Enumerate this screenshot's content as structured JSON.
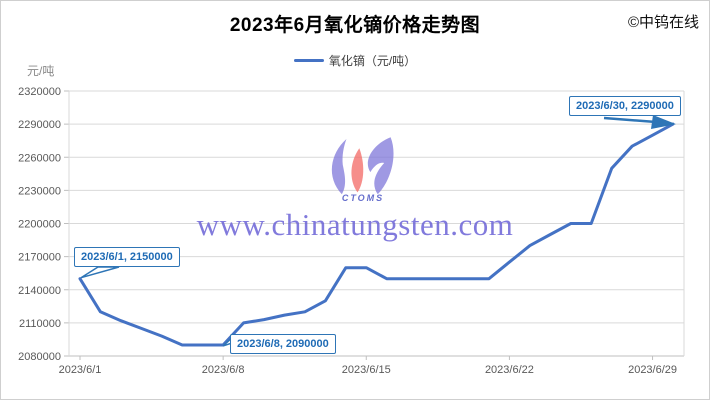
{
  "header": {
    "title": "2023年6月氧化镝价格走势图",
    "copyright": "©中钨在线"
  },
  "legend": {
    "series_label": "氧化镝（元/吨）",
    "line_color": "#4472c4"
  },
  "axes": {
    "y_unit": "元/吨",
    "y_ticks": [
      2320000,
      2290000,
      2260000,
      2230000,
      2200000,
      2170000,
      2140000,
      2110000,
      2080000
    ],
    "x_ticks": [
      "2023/6/1",
      "2023/6/8",
      "2023/6/15",
      "2023/6/22",
      "2023/6/29"
    ]
  },
  "annotations": [
    {
      "label": "2023/6/1, 2150000",
      "date": "2023/6/1",
      "value": 2150000
    },
    {
      "label": "2023/6/8, 2090000",
      "date": "2023/6/8",
      "value": 2090000
    },
    {
      "label": "2023/6/30, 2290000",
      "date": "2023/6/30",
      "value": 2290000
    }
  ],
  "watermark": {
    "url": "www.chinatungsten.com",
    "logo_text": "CTOMS"
  },
  "colors": {
    "line": "#4472c4",
    "grid": "#d9d9d9",
    "axis": "#bfbfbf",
    "tick_text": "#595959",
    "annotation": "#2e75b6"
  },
  "chart_data": {
    "type": "line",
    "title": "2023年6月氧化镝价格走势图",
    "xlabel": "",
    "ylabel": "元/吨",
    "ylim": [
      2080000,
      2320000
    ],
    "y_tick_interval": 30000,
    "grid": true,
    "legend_position": "top",
    "x": [
      "2023/6/1",
      "2023/6/2",
      "2023/6/3",
      "2023/6/4",
      "2023/6/5",
      "2023/6/6",
      "2023/6/7",
      "2023/6/8",
      "2023/6/9",
      "2023/6/10",
      "2023/6/11",
      "2023/6/12",
      "2023/6/13",
      "2023/6/14",
      "2023/6/15",
      "2023/6/16",
      "2023/6/17",
      "2023/6/18",
      "2023/6/19",
      "2023/6/20",
      "2023/6/21",
      "2023/6/22",
      "2023/6/23",
      "2023/6/24",
      "2023/6/25",
      "2023/6/26",
      "2023/6/27",
      "2023/6/28",
      "2023/6/29",
      "2023/6/30"
    ],
    "series": [
      {
        "name": "氧化镝",
        "values": [
          2150000,
          2120000,
          2112000,
          2105000,
          2098000,
          2090000,
          2090000,
          2090000,
          2110000,
          2113000,
          2117000,
          2120000,
          2130000,
          2160000,
          2160000,
          2150000,
          2150000,
          2150000,
          2150000,
          2150000,
          2150000,
          2165000,
          2180000,
          2190000,
          2200000,
          2200000,
          2250000,
          2270000,
          2280000,
          2290000
        ]
      }
    ]
  }
}
